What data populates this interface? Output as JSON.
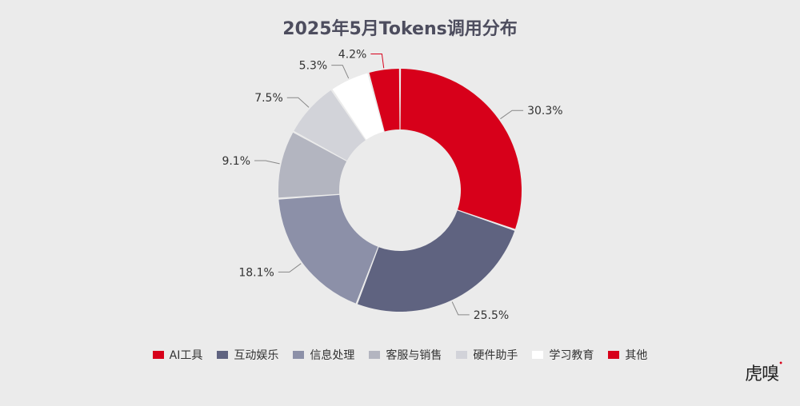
{
  "chart_data": {
    "type": "pie",
    "style": "donut",
    "title": "2025年5月Tokens调用分布",
    "categories": [
      "AI工具",
      "互动娱乐",
      "信息处理",
      "客服与销售",
      "硬件助手",
      "学习教育",
      "其他"
    ],
    "values": [
      30.3,
      25.5,
      18.1,
      9.1,
      7.5,
      5.3,
      4.2
    ],
    "labels": [
      "30.3%",
      "25.5%",
      "18.1%",
      "9.1%",
      "7.5%",
      "5.3%",
      "4.2%"
    ],
    "colors": [
      "#d7001a",
      "#5f6380",
      "#8c90a8",
      "#b3b5c0",
      "#d2d3d9",
      "#ffffff",
      "#d7001a"
    ],
    "legend_position": "bottom"
  },
  "watermark": {
    "text": "虎嗅"
  }
}
